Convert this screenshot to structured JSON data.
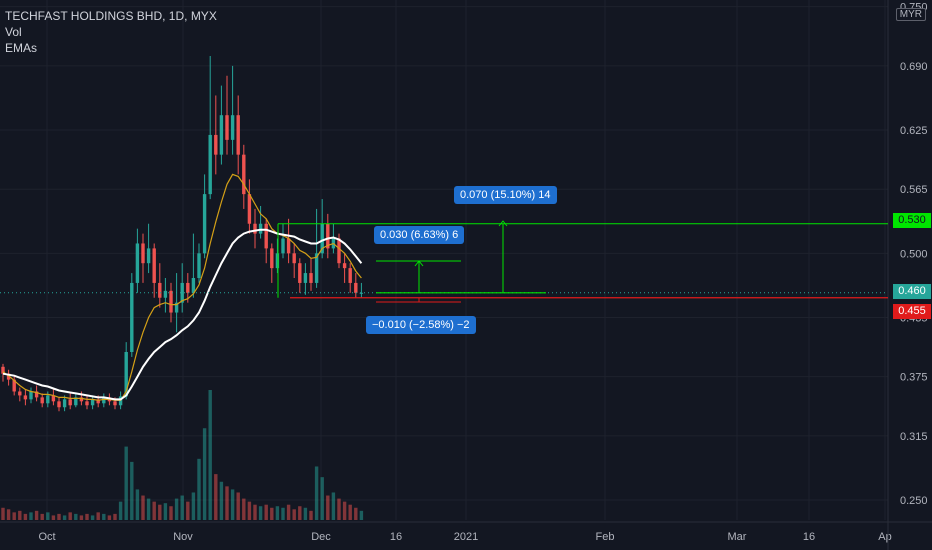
{
  "legend": {
    "title": "TECHFAST HOLDINGS BHD, 1D, MYX",
    "vol": "Vol",
    "emas": "EMAs"
  },
  "currency": "MYR",
  "price_tags": {
    "green": "0.530",
    "current": "0.460",
    "red": "0.455"
  },
  "boxes": {
    "big": "0.070 (15.10%) 14",
    "small": "0.030 (6.63%) 6",
    "neg": "−0.010 (−2.58%) −2"
  },
  "colors": {
    "up": "#26a69a",
    "down": "#ef5350",
    "ema_fast": "#d4a017",
    "ema_slow": "#ffffff",
    "level_green": "#00e600",
    "level_red": "#e01b1b",
    "box": "#1e6fd0"
  },
  "chart_data": {
    "type": "candlestick",
    "title": "TECHFAST HOLDINGS BHD, 1D, MYX",
    "yaxis_ticks": [
      0.75,
      0.69,
      0.625,
      0.565,
      0.5,
      0.435,
      0.375,
      0.315,
      0.25
    ],
    "yaxis_labels": [
      "0.750",
      "0.690",
      "0.625",
      "0.565",
      "0.500",
      "0.435",
      "0.375",
      "0.315",
      "0.250"
    ],
    "xaxis_labels": [
      "Oct",
      "Nov",
      "Dec",
      "16",
      "2021",
      "Feb",
      "Mar",
      "16",
      "Ap"
    ],
    "levels": {
      "resistance": 0.53,
      "current": 0.46,
      "support": 0.455
    },
    "candles": [
      [
        0.385,
        0.378,
        0.388,
        0.37
      ],
      [
        0.378,
        0.372,
        0.382,
        0.366
      ],
      [
        0.372,
        0.36,
        0.375,
        0.356
      ],
      [
        0.36,
        0.356,
        0.364,
        0.35
      ],
      [
        0.356,
        0.352,
        0.362,
        0.346
      ],
      [
        0.352,
        0.36,
        0.364,
        0.348
      ],
      [
        0.36,
        0.354,
        0.366,
        0.35
      ],
      [
        0.354,
        0.348,
        0.358,
        0.344
      ],
      [
        0.348,
        0.356,
        0.36,
        0.344
      ],
      [
        0.356,
        0.35,
        0.362,
        0.346
      ],
      [
        0.35,
        0.344,
        0.354,
        0.34
      ],
      [
        0.344,
        0.352,
        0.356,
        0.34
      ],
      [
        0.352,
        0.346,
        0.358,
        0.342
      ],
      [
        0.346,
        0.354,
        0.358,
        0.344
      ],
      [
        0.354,
        0.35,
        0.36,
        0.346
      ],
      [
        0.35,
        0.346,
        0.356,
        0.342
      ],
      [
        0.346,
        0.352,
        0.356,
        0.342
      ],
      [
        0.352,
        0.348,
        0.356,
        0.344
      ],
      [
        0.348,
        0.354,
        0.358,
        0.344
      ],
      [
        0.354,
        0.35,
        0.358,
        0.346
      ],
      [
        0.35,
        0.346,
        0.354,
        0.342
      ],
      [
        0.346,
        0.355,
        0.36,
        0.342
      ],
      [
        0.355,
        0.4,
        0.41,
        0.352
      ],
      [
        0.4,
        0.47,
        0.48,
        0.395
      ],
      [
        0.47,
        0.51,
        0.525,
        0.46
      ],
      [
        0.51,
        0.49,
        0.52,
        0.47
      ],
      [
        0.49,
        0.505,
        0.53,
        0.48
      ],
      [
        0.505,
        0.47,
        0.51,
        0.455
      ],
      [
        0.47,
        0.455,
        0.49,
        0.445
      ],
      [
        0.455,
        0.462,
        0.475,
        0.44
      ],
      [
        0.462,
        0.44,
        0.47,
        0.43
      ],
      [
        0.44,
        0.45,
        0.48,
        0.42
      ],
      [
        0.45,
        0.47,
        0.49,
        0.44
      ],
      [
        0.47,
        0.46,
        0.48,
        0.45
      ],
      [
        0.46,
        0.475,
        0.52,
        0.455
      ],
      [
        0.475,
        0.5,
        0.51,
        0.47
      ],
      [
        0.5,
        0.56,
        0.58,
        0.495
      ],
      [
        0.56,
        0.62,
        0.7,
        0.555
      ],
      [
        0.62,
        0.6,
        0.66,
        0.58
      ],
      [
        0.6,
        0.64,
        0.67,
        0.59
      ],
      [
        0.64,
        0.615,
        0.68,
        0.6
      ],
      [
        0.615,
        0.64,
        0.69,
        0.6
      ],
      [
        0.64,
        0.6,
        0.66,
        0.58
      ],
      [
        0.6,
        0.56,
        0.61,
        0.545
      ],
      [
        0.56,
        0.53,
        0.575,
        0.52
      ],
      [
        0.53,
        0.52,
        0.545,
        0.505
      ],
      [
        0.52,
        0.53,
        0.548,
        0.515
      ],
      [
        0.53,
        0.505,
        0.535,
        0.49
      ],
      [
        0.505,
        0.485,
        0.51,
        0.47
      ],
      [
        0.485,
        0.5,
        0.515,
        0.48
      ],
      [
        0.5,
        0.515,
        0.53,
        0.495
      ],
      [
        0.515,
        0.5,
        0.535,
        0.49
      ],
      [
        0.5,
        0.49,
        0.51,
        0.475
      ],
      [
        0.49,
        0.47,
        0.495,
        0.46
      ],
      [
        0.47,
        0.48,
        0.49,
        0.458
      ],
      [
        0.48,
        0.47,
        0.495,
        0.462
      ],
      [
        0.47,
        0.5,
        0.545,
        0.465
      ],
      [
        0.5,
        0.53,
        0.555,
        0.495
      ],
      [
        0.53,
        0.505,
        0.54,
        0.495
      ],
      [
        0.505,
        0.515,
        0.53,
        0.5
      ],
      [
        0.515,
        0.49,
        0.52,
        0.485
      ],
      [
        0.49,
        0.485,
        0.5,
        0.47
      ],
      [
        0.485,
        0.47,
        0.49,
        0.46
      ],
      [
        0.47,
        0.46,
        0.48,
        0.455
      ],
      [
        0.46,
        0.46,
        0.47,
        0.455
      ]
    ],
    "volumes": [
      8,
      7,
      5,
      6,
      4,
      5,
      6,
      4,
      5,
      3,
      4,
      3,
      5,
      4,
      3,
      4,
      3,
      5,
      4,
      3,
      4,
      12,
      48,
      38,
      20,
      16,
      14,
      12,
      10,
      11,
      9,
      14,
      16,
      12,
      18,
      40,
      60,
      85,
      30,
      25,
      22,
      20,
      18,
      14,
      12,
      10,
      9,
      10,
      8,
      9,
      8,
      10,
      7,
      9,
      8,
      6,
      35,
      28,
      16,
      18,
      14,
      12,
      10,
      8,
      6
    ],
    "ema_fast": [
      0.38,
      0.376,
      0.371,
      0.366,
      0.362,
      0.36,
      0.359,
      0.357,
      0.357,
      0.356,
      0.354,
      0.354,
      0.353,
      0.353,
      0.353,
      0.352,
      0.352,
      0.351,
      0.352,
      0.352,
      0.351,
      0.351,
      0.36,
      0.38,
      0.402,
      0.42,
      0.435,
      0.445,
      0.448,
      0.45,
      0.448,
      0.448,
      0.452,
      0.454,
      0.459,
      0.468,
      0.485,
      0.51,
      0.532,
      0.552,
      0.57,
      0.58,
      0.578,
      0.57,
      0.56,
      0.55,
      0.54,
      0.535,
      0.525,
      0.52,
      0.518,
      0.515,
      0.51,
      0.503,
      0.5,
      0.495,
      0.496,
      0.505,
      0.508,
      0.51,
      0.505,
      0.5,
      0.492,
      0.482,
      0.475
    ],
    "ema_slow": [
      0.378,
      0.377,
      0.376,
      0.374,
      0.372,
      0.37,
      0.368,
      0.366,
      0.365,
      0.363,
      0.361,
      0.36,
      0.359,
      0.358,
      0.357,
      0.356,
      0.355,
      0.354,
      0.354,
      0.353,
      0.352,
      0.352,
      0.356,
      0.365,
      0.375,
      0.385,
      0.393,
      0.4,
      0.405,
      0.41,
      0.413,
      0.417,
      0.422,
      0.426,
      0.432,
      0.44,
      0.452,
      0.466,
      0.478,
      0.49,
      0.5,
      0.51,
      0.516,
      0.52,
      0.522,
      0.523,
      0.524,
      0.524,
      0.522,
      0.52,
      0.519,
      0.518,
      0.517,
      0.514,
      0.512,
      0.51,
      0.51,
      0.513,
      0.515,
      0.516,
      0.514,
      0.51,
      0.504,
      0.497,
      0.49
    ]
  }
}
